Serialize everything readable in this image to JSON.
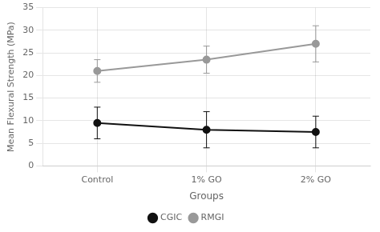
{
  "chart_data": {
    "type": "line",
    "categories": [
      "Control",
      "1% GO",
      "2% GO"
    ],
    "series": [
      {
        "name": "CGIC",
        "color": "#111111",
        "values": [
          9.5,
          8.0,
          7.5
        ],
        "errors": [
          3.5,
          4.0,
          3.5
        ]
      },
      {
        "name": "RMGI",
        "color": "#999999",
        "values": [
          21.0,
          23.5,
          27.0
        ],
        "errors": [
          2.5,
          3.0,
          4.0
        ]
      }
    ],
    "xlabel": "Groups",
    "ylabel": "Mean Flexural Strength (MPa)",
    "ylim": [
      0,
      35
    ],
    "yticks": [
      0,
      5,
      10,
      15,
      20,
      25,
      30,
      35
    ],
    "grid": true,
    "legend": "bottom",
    "marker": "circle"
  }
}
